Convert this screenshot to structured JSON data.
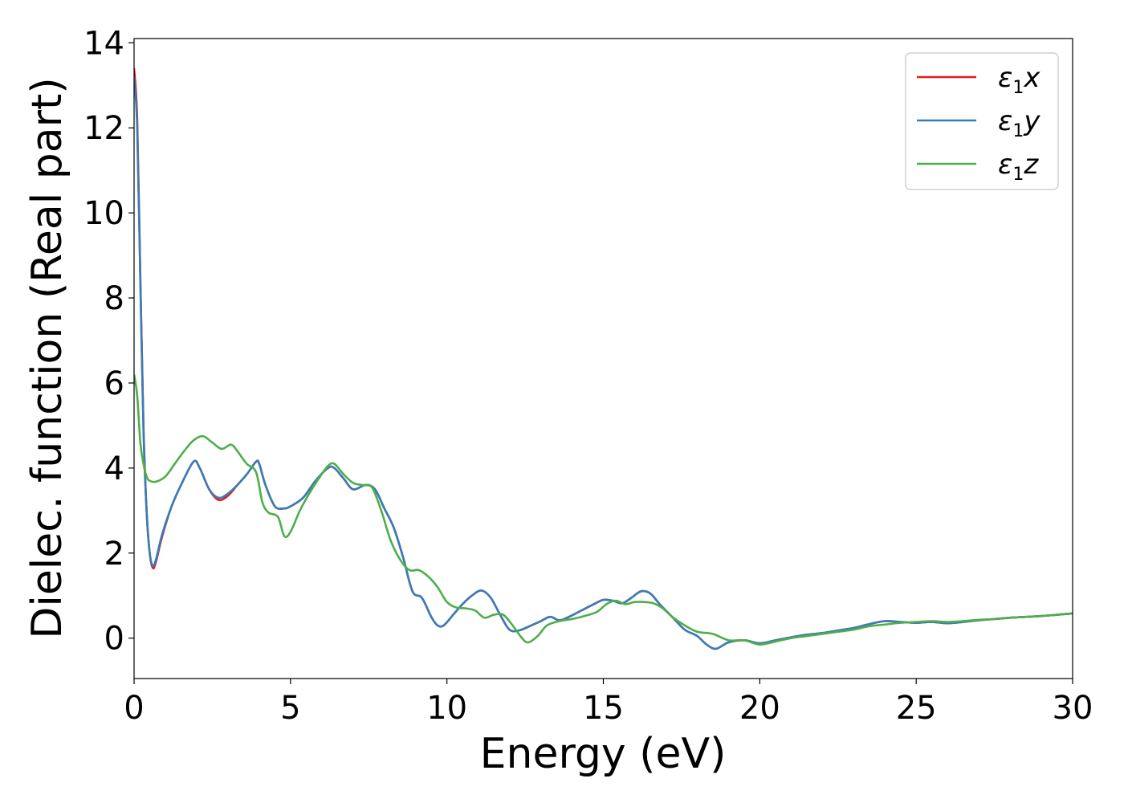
{
  "chart_data": {
    "type": "line",
    "xlabel": "Energy (eV)",
    "ylabel": "Dielec. function (Real part)",
    "xlim": [
      0,
      30
    ],
    "ylim": [
      -0.95,
      14.1
    ],
    "xticks": [
      0,
      5,
      10,
      15,
      20,
      25,
      30
    ],
    "yticks": [
      0,
      2,
      4,
      6,
      8,
      10,
      12,
      14
    ],
    "grid": false,
    "legend_position": "top-right",
    "series": [
      {
        "name": "ε1x",
        "legend": {
          "base": "ε",
          "sub": "1",
          "suffix": "x"
        },
        "color": "#e41a1c",
        "x": [
          0,
          0.1,
          0.2,
          0.3,
          0.4,
          0.5,
          0.6,
          0.7,
          0.9,
          1.2,
          1.5,
          1.9,
          2.1,
          2.4,
          2.7,
          3.0,
          3.3,
          3.6,
          3.9,
          4.0,
          4.2,
          4.5,
          4.8,
          5.0,
          5.4,
          5.8,
          6.2,
          6.4,
          6.7,
          7.0,
          7.4,
          7.7,
          8.0,
          8.3,
          8.6,
          8.9,
          9.2,
          9.5,
          9.7,
          9.9,
          10.2,
          10.5,
          10.8,
          11.1,
          11.4,
          11.7,
          12.0,
          12.3,
          12.7,
          13.0,
          13.3,
          13.6,
          13.9,
          14.3,
          14.7,
          15.0,
          15.3,
          15.6,
          15.9,
          16.2,
          16.5,
          16.8,
          17.2,
          17.6,
          18.0,
          18.3,
          18.6,
          19.0,
          19.5,
          20.0,
          20.5,
          21.0,
          21.5,
          22.0,
          22.5,
          23.0,
          23.5,
          24.0,
          24.5,
          25.0,
          25.5,
          26.0,
          26.5,
          27.0,
          27.5,
          28.0,
          28.5,
          29.0,
          29.5,
          30.0
        ],
        "y": [
          13.4,
          12.2,
          8.5,
          5.0,
          3.0,
          2.0,
          1.65,
          1.8,
          2.4,
          3.1,
          3.6,
          4.15,
          4.0,
          3.5,
          3.25,
          3.35,
          3.6,
          3.85,
          4.15,
          4.1,
          3.6,
          3.1,
          3.05,
          3.1,
          3.3,
          3.7,
          4.0,
          4.0,
          3.75,
          3.5,
          3.6,
          3.5,
          3.05,
          2.6,
          1.9,
          1.1,
          0.95,
          0.5,
          0.3,
          0.3,
          0.55,
          0.8,
          1.0,
          1.12,
          0.95,
          0.55,
          0.2,
          0.18,
          0.3,
          0.4,
          0.5,
          0.42,
          0.5,
          0.65,
          0.8,
          0.9,
          0.88,
          0.82,
          0.95,
          1.1,
          1.05,
          0.8,
          0.5,
          0.2,
          0.05,
          -0.15,
          -0.25,
          -0.1,
          -0.05,
          -0.12,
          -0.05,
          0.02,
          0.08,
          0.12,
          0.18,
          0.24,
          0.33,
          0.4,
          0.38,
          0.36,
          0.38,
          0.35,
          0.38,
          0.42,
          0.45,
          0.48,
          0.5,
          0.52,
          0.55,
          0.58
        ]
      },
      {
        "name": "ε1y",
        "legend": {
          "base": "ε",
          "sub": "1",
          "suffix": "y"
        },
        "color": "#377eb8",
        "x": [
          0,
          0.1,
          0.2,
          0.3,
          0.4,
          0.5,
          0.6,
          0.7,
          0.9,
          1.2,
          1.5,
          1.9,
          2.1,
          2.4,
          2.7,
          3.0,
          3.3,
          3.6,
          3.9,
          4.0,
          4.2,
          4.5,
          4.8,
          5.0,
          5.4,
          5.8,
          6.2,
          6.4,
          6.7,
          7.0,
          7.4,
          7.7,
          8.0,
          8.3,
          8.6,
          8.9,
          9.2,
          9.5,
          9.7,
          9.9,
          10.2,
          10.5,
          10.8,
          11.1,
          11.4,
          11.7,
          12.0,
          12.3,
          12.7,
          13.0,
          13.3,
          13.6,
          13.9,
          14.3,
          14.7,
          15.0,
          15.3,
          15.6,
          15.9,
          16.2,
          16.5,
          16.8,
          17.2,
          17.6,
          18.0,
          18.3,
          18.6,
          19.0,
          19.5,
          20.0,
          20.5,
          21.0,
          21.5,
          22.0,
          22.5,
          23.0,
          23.5,
          24.0,
          24.5,
          25.0,
          25.5,
          26.0,
          26.5,
          27.0,
          27.5,
          28.0,
          28.5,
          29.0,
          29.5,
          30.0
        ],
        "y": [
          13.2,
          12.0,
          8.4,
          4.9,
          3.0,
          2.0,
          1.7,
          1.85,
          2.45,
          3.1,
          3.6,
          4.15,
          4.0,
          3.5,
          3.3,
          3.4,
          3.6,
          3.85,
          4.15,
          4.1,
          3.6,
          3.1,
          3.05,
          3.1,
          3.3,
          3.7,
          4.0,
          4.0,
          3.75,
          3.5,
          3.6,
          3.5,
          3.05,
          2.6,
          1.9,
          1.1,
          0.95,
          0.5,
          0.3,
          0.3,
          0.55,
          0.8,
          1.0,
          1.12,
          0.95,
          0.55,
          0.2,
          0.18,
          0.3,
          0.4,
          0.5,
          0.42,
          0.5,
          0.65,
          0.8,
          0.9,
          0.88,
          0.82,
          0.95,
          1.1,
          1.05,
          0.8,
          0.5,
          0.2,
          0.05,
          -0.15,
          -0.25,
          -0.1,
          -0.05,
          -0.12,
          -0.05,
          0.02,
          0.08,
          0.12,
          0.18,
          0.24,
          0.33,
          0.4,
          0.38,
          0.36,
          0.38,
          0.35,
          0.38,
          0.42,
          0.45,
          0.48,
          0.5,
          0.52,
          0.55,
          0.58
        ]
      },
      {
        "name": "ε1z",
        "legend": {
          "base": "ε",
          "sub": "1",
          "suffix": "z"
        },
        "color": "#4daf4a",
        "x": [
          0,
          0.1,
          0.2,
          0.3,
          0.4,
          0.5,
          0.7,
          1.0,
          1.3,
          1.6,
          1.9,
          2.2,
          2.5,
          2.8,
          3.1,
          3.3,
          3.6,
          3.9,
          4.1,
          4.3,
          4.6,
          4.8,
          5.0,
          5.3,
          5.6,
          5.9,
          6.2,
          6.4,
          6.7,
          7.0,
          7.3,
          7.6,
          7.9,
          8.2,
          8.5,
          8.8,
          9.1,
          9.4,
          9.7,
          10.0,
          10.3,
          10.6,
          10.9,
          11.2,
          11.5,
          11.8,
          12.1,
          12.4,
          12.6,
          12.9,
          13.2,
          13.6,
          14.0,
          14.4,
          14.8,
          15.1,
          15.4,
          15.7,
          16.0,
          16.3,
          16.6,
          16.9,
          17.2,
          17.6,
          18.0,
          18.5,
          19.0,
          19.5,
          20.0,
          20.5,
          21.0,
          21.5,
          22.0,
          22.5,
          23.0,
          23.5,
          24.0,
          24.5,
          25.0,
          25.5,
          26.0,
          26.5,
          27.0,
          27.5,
          28.0,
          28.5,
          29.0,
          29.5,
          30.0
        ],
        "y": [
          6.2,
          5.7,
          4.6,
          4.1,
          3.8,
          3.7,
          3.68,
          3.8,
          4.1,
          4.4,
          4.65,
          4.75,
          4.6,
          4.45,
          4.55,
          4.4,
          4.1,
          3.9,
          3.2,
          2.95,
          2.85,
          2.4,
          2.5,
          3.0,
          3.4,
          3.75,
          4.05,
          4.1,
          3.85,
          3.65,
          3.6,
          3.55,
          3.0,
          2.3,
          1.85,
          1.6,
          1.6,
          1.45,
          1.2,
          0.85,
          0.72,
          0.7,
          0.65,
          0.48,
          0.55,
          0.55,
          0.3,
          0.0,
          -0.1,
          0.05,
          0.3,
          0.4,
          0.45,
          0.52,
          0.62,
          0.8,
          0.88,
          0.8,
          0.85,
          0.85,
          0.82,
          0.7,
          0.5,
          0.3,
          0.15,
          0.1,
          -0.05,
          -0.05,
          -0.15,
          -0.08,
          0.0,
          0.05,
          0.1,
          0.15,
          0.2,
          0.28,
          0.32,
          0.36,
          0.38,
          0.4,
          0.38,
          0.4,
          0.43,
          0.45,
          0.48,
          0.5,
          0.52,
          0.55,
          0.58
        ]
      }
    ]
  }
}
